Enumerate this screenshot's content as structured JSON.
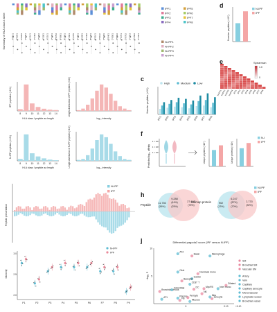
{
  "panel_letters": {
    "d": "d",
    "e": "e",
    "c": "c",
    "f": "f",
    "h": "h",
    "j": "j"
  },
  "hla_panel": {
    "ylabel": "Summary of HLA class I allele",
    "alleles": [
      "A*0101",
      "A*0201",
      "A*0206",
      "A*0301",
      "A*1101",
      "A*2402",
      "A*2902",
      "A*3001",
      "A*3101",
      "A*3201",
      "B*0702",
      "B*0801",
      "B*1501",
      "B*1801",
      "B*2705",
      "B*3501",
      "B*4001",
      "B*4402",
      "B*4403",
      "B*5101",
      "C*0102",
      "C*0303",
      "C*0401",
      "C*0501",
      "C*0602",
      "C*0701",
      "C*0702",
      "C*1203",
      "C*1502",
      "C*1601"
    ],
    "legend_ipf": [
      "IPF1",
      "IPF2",
      "IPF3",
      "IPF4",
      "IPF5",
      "IPF6",
      "IPF7",
      "IPF8"
    ],
    "legend_nipf": [
      "N-IPF1",
      "N-IPF2",
      "N-IPF3",
      "N-IPF4"
    ],
    "colors_ipf": [
      "#5b8fd8",
      "#e07a9a",
      "#3fae8f",
      "#8a6cc0",
      "#d4a03a",
      "#a6cc66",
      "#e6c33a",
      "#4ec5c9"
    ],
    "colors_nipf": [
      "#b08a6b",
      "#e0b0c0",
      "#a0b870",
      "#c9a0d0"
    ]
  },
  "chart_data": [
    {
      "type": "bar",
      "panel": "d",
      "categories": [
        "N-IPF",
        "IPF"
      ],
      "values": [
        8.5,
        14
      ],
      "ylabel": "Number peptides (×10⁵)",
      "legend": [
        "N-IPF",
        "IPF"
      ],
      "colors": [
        "#87cfe0",
        "#f4a6a6"
      ]
    },
    {
      "type": "bar",
      "panel": "c",
      "categories": [
        "IPF1",
        "IPF2",
        "IPF3",
        "IPF4",
        "IPF5",
        "IPF6",
        "IPF7",
        "IPF8"
      ],
      "ylabel": "Number peptides (×10³)",
      "ylim": [
        0,
        5
      ],
      "series": [
        {
          "name": "High",
          "values": [
            1.0,
            1.2,
            1.4,
            1.3,
            1.1,
            1.5,
            1.6,
            1.3
          ],
          "color": "#bfe6ef"
        },
        {
          "name": "Medium",
          "values": [
            1.6,
            1.9,
            2.2,
            2.0,
            1.8,
            2.4,
            2.6,
            2.1
          ],
          "color": "#5fbcd3"
        },
        {
          "name": "Low",
          "values": [
            2.2,
            2.6,
            3.0,
            2.8,
            2.5,
            3.4,
            3.8,
            3.1
          ],
          "color": "#1f8ca3"
        }
      ]
    },
    {
      "type": "bar",
      "panel": "ipf-length",
      "categories": [
        "8",
        "9",
        "10",
        "11",
        "12",
        "13",
        "14"
      ],
      "values": [
        0.4,
        6.0,
        1.7,
        0.9,
        0.5,
        0.3,
        0.2
      ],
      "xlabel": "HLA class I peptide aa length",
      "ylabel": "IPF peptides (×10³)",
      "color": "#f4b6b6"
    },
    {
      "type": "bar",
      "panel": "ipf-intensity",
      "values": [
        0.1,
        0.3,
        0.8,
        1.6,
        2.6,
        3.4,
        3.0,
        2.2,
        1.3,
        0.6,
        0.3,
        0.1
      ],
      "xlabel": "log₁₀ intensity",
      "ylabel": "Length distribution of IPF peptides (×10³)",
      "color": "#f4b6b6"
    },
    {
      "type": "bar",
      "panel": "nipf-length",
      "categories": [
        "8",
        "9",
        "10",
        "11",
        "12",
        "13",
        "14"
      ],
      "values": [
        0.3,
        4.2,
        1.2,
        0.7,
        0.4,
        0.2,
        0.1
      ],
      "xlabel": "HLA class I peptide aa length",
      "ylabel": "N-IPF peptides (×10³)",
      "color": "#a8dbe8"
    },
    {
      "type": "bar",
      "panel": "nipf-intensity",
      "values": [
        0.1,
        0.2,
        0.6,
        1.3,
        2.2,
        2.8,
        2.5,
        1.8,
        1.0,
        0.5,
        0.2,
        0.1
      ],
      "xlabel": "log₁₀ intensity",
      "ylabel": "Length distribution of N-IPF peptides (×10³)",
      "color": "#a8dbe8"
    },
    {
      "type": "bar",
      "panel": "f-peptides",
      "categories": [
        "N-IPF",
        "IPF"
      ],
      "values": [
        2.8,
        3.6
      ],
      "ylabel": "Unique peptides (×10⁴)",
      "colors": [
        "#87cfe0",
        "#f4a6a6"
      ]
    },
    {
      "type": "bar",
      "panel": "f-proteins",
      "categories": [
        "N-IPF",
        "IPF"
      ],
      "values": [
        3.1,
        4.0
      ],
      "ylabel": "Unique proteins (×10³)",
      "colors": [
        "#87cfe0",
        "#f4a6a6"
      ]
    },
    {
      "type": "scatter",
      "panel": "pointrange",
      "categories": [
        "P1",
        "P2",
        "P3",
        "P4",
        "P5",
        "P6",
        "P7",
        "P8",
        "P9"
      ],
      "ylabel": "Intensity",
      "ylim": [
        1.8,
        3.0
      ],
      "series": [
        {
          "name": "N-IPF",
          "values": [
            2.7,
            2.2,
            2.5,
            2.6,
            2.6,
            2.6,
            2.5,
            2.5,
            2.0
          ],
          "color": "#5fbcd3"
        },
        {
          "name": "IPF",
          "values": [
            2.8,
            2.3,
            2.6,
            2.7,
            2.7,
            2.7,
            2.6,
            2.6,
            2.1
          ],
          "color": "#e98a9a"
        }
      ]
    },
    {
      "type": "scatter",
      "panel": "j",
      "title": "Differential pagoda2 score (IPF versus N-IPF)",
      "ylabel": "−log₁₀ P",
      "series": [
        {
          "name": "AT2",
          "x": -0.02,
          "y": 9.0
        },
        {
          "name": "Basal",
          "x": 0.015,
          "y": 8.6
        },
        {
          "name": "Macrophage",
          "x": 0.06,
          "y": 8.6
        },
        {
          "name": "Ciliated",
          "x": 0.1,
          "y": 3.3
        },
        {
          "name": "Club",
          "x": -0.02,
          "y": 5.7
        },
        {
          "name": "Nonclass mono",
          "x": 0.03,
          "y": 5.4
        },
        {
          "name": "Goblet",
          "x": 0.015,
          "y": 4.5
        },
        {
          "name": "Basophil",
          "x": -0.01,
          "y": 4.1
        },
        {
          "name": "CD8⁺ T",
          "x": 0.01,
          "y": 3.5
        },
        {
          "name": "Bronchial serous",
          "x": -0.065,
          "y": 2.2
        },
        {
          "name": "Adventitial",
          "x": -0.035,
          "y": 2.5
        },
        {
          "name": "MyoFB",
          "x": 0.045,
          "y": 2.7
        },
        {
          "name": "Inter mono",
          "x": 0.08,
          "y": 2.7
        },
        {
          "name": "NK",
          "x": 0.04,
          "y": 1.8
        },
        {
          "name": "Mes",
          "x": 0.06,
          "y": 1.2
        },
        {
          "name": "Ionocyte",
          "x": 0.065,
          "y": 0.9
        },
        {
          "name": "Plasma",
          "x": -0.02,
          "y": 1.0
        },
        {
          "name": "Pericyte",
          "x": 0.005,
          "y": 1.1
        },
        {
          "name": "AT1",
          "x": -0.06,
          "y": 0.8
        },
        {
          "name": "FB",
          "x": -0.015,
          "y": 0.6
        },
        {
          "name": "Mucous",
          "x": 0.01,
          "y": 0.4
        },
        {
          "name": "DC",
          "x": 0.02,
          "y": 2.6
        }
      ],
      "legend": [
        "SM",
        "Bronchial SM",
        "Vascular SM",
        "Artery",
        "Vein",
        "Capillary",
        "Capillary aerocyte",
        "Microvascular",
        "Lymphatic vessel",
        "Bronchial vessel"
      ],
      "x_ticks": [
        "0",
        "0.10",
        "+0.10"
      ],
      "colors": {
        "sm": "#e98aa0",
        "vessel": "#5fbcd3"
      }
    }
  ],
  "legend_labels": {
    "nipf": "N-IPF",
    "ipf": "IPF"
  },
  "c_legend": [
    "High",
    "Medium",
    "Low"
  ],
  "c_xcats": [
    "IPF1",
    "IPF2",
    "IPF3",
    "IPF4",
    "IPF5",
    "IPF6",
    "IPF7",
    "IPF8"
  ],
  "e_panel": {
    "title": "Spearman",
    "scale_max": "1.0",
    "scale_min": "0",
    "labels": [
      "N-IPF1",
      "N-IPF2",
      "N-IPF3",
      "N-IPF4",
      "IPF1",
      "IPF2",
      "IPF3",
      "IPF4",
      "IPF5",
      "IPF6",
      "IPF7",
      "IPF8"
    ]
  },
  "length_panels": {
    "ipf_ylabel": "IPF peptides (×10³)",
    "ipf_len_xlabel": "HLA class I peptide aa length",
    "ipf_int_ylabel": "Length distribution of IPF peptides (×10³)",
    "ipf_int_xlabel": "log₁₀ intensity",
    "nipf_ylabel": "N-IPF peptides (×10³)",
    "nipf_len_xlabel": "HLA class I peptide aa length",
    "nipf_int_ylabel": "Length distribution of N-IPF peptides (×10³)",
    "nipf_int_xlabel": "log₁₀ intensity",
    "len_ticks": [
      "8",
      "9",
      "10",
      "11",
      "12",
      "13",
      "14"
    ]
  },
  "f_panel": {
    "ylabel": "Predicted log₁₀ affinity",
    "yticks": [
      "1 × 10³",
      "1 × 10²",
      "1 × 10¹"
    ],
    "pep_ylabel": "Unique peptides (×10⁴)",
    "prot_ylabel": "Unique proteins (×10³)",
    "legend": [
      "N-I",
      "IPF"
    ]
  },
  "presentation": {
    "ylabel": "Peptide presentation",
    "legend": [
      "N-IPF",
      "IPF"
    ]
  },
  "venn": {
    "peptide_label": "Peptide",
    "peptide_left": "11,736",
    "peptide_left_pct": "(56%)",
    "peptide_mid": "9,288",
    "peptide_mid_pct": "(44%)",
    "peptide_mid_pct2": "(25%)",
    "peptide_right": "27,682",
    "peptide_right_pct": "(75%)",
    "protein_label": "Unimap protein",
    "protein_left": "902",
    "protein_left_pct": "(13%)",
    "protein_mid": "6,247",
    "protein_mid_pct": "(87%)",
    "protein_mid_pct2": "(70%)",
    "protein_right": "2,733",
    "protein_right_pct": "(30%)",
    "legend": [
      "N-IPF",
      "IPF"
    ]
  },
  "pointrange": {
    "ylabel": "Intensity",
    "yticks": [
      "3.0",
      "2.5",
      "2.0"
    ],
    "legend": [
      "N-IPF",
      "IPF"
    ]
  },
  "j_panel": {
    "title": "Differential pagoda2 score (IPF versus N-IPF)",
    "ylabel": "−log₁₀ P",
    "yticks": [
      "10",
      "5"
    ],
    "xticks": [
      "0",
      "0.10",
      "+0.10"
    ],
    "legend_sm": [
      "SM",
      "Bronchial SM",
      "Vascular SM"
    ],
    "legend_vessel": [
      "Artery",
      "Vein",
      "Capillary",
      "Capillary aerocyte",
      "Microvascular",
      "Lymphatic vessel",
      "Bronchial vessel"
    ]
  }
}
